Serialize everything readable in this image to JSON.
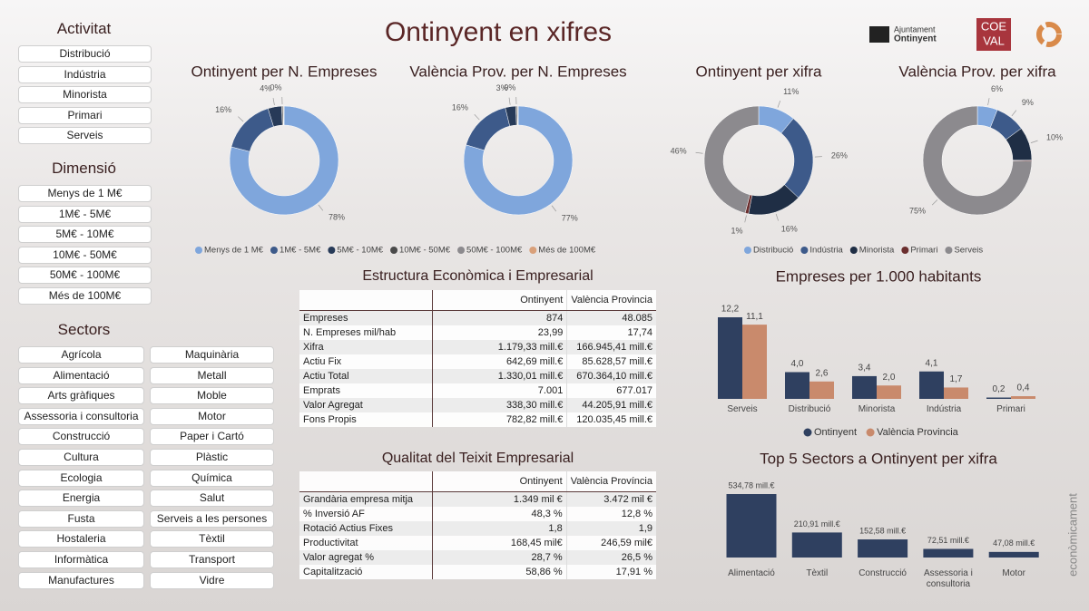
{
  "header": {
    "title": "Ontinyent en xifres",
    "logo_ajuntament": [
      "Ajuntament",
      "Ontinyent"
    ],
    "logo_coeval": [
      "COE",
      "VAL"
    ],
    "side_text": "econòmicament"
  },
  "slicers": [
    {
      "title": "Activitat",
      "items": [
        "Distribució",
        "Indústria",
        "Minorista",
        "Primari",
        "Serveis"
      ]
    },
    {
      "title": "Dimensió",
      "items": [
        "Menys de 1 M€",
        "1M€ - 5M€",
        "5M€ - 10M€",
        "10M€ - 50M€",
        "50M€ - 100M€",
        "Més de 100M€"
      ]
    },
    {
      "title": "Sectors",
      "items": [
        "Agrícola",
        "Alimentació",
        "Arts gràfiques",
        "Assessoria i consultoria",
        "Construcció",
        "Cultura",
        "Ecologia",
        "Energia",
        "Fusta",
        "Hostaleria",
        "Informàtica",
        "Manufactures",
        "Maquinària",
        "Metall",
        "Moble",
        "Motor",
        "Paper i Cartó",
        "Plàstic",
        "Química",
        "Salut",
        "Serveis a les persones",
        "Tèxtil",
        "Transport",
        "Vidre"
      ]
    }
  ],
  "legends": [
    {
      "names": [
        "Menys de 1 M€",
        "1M€ - 5M€",
        "5M€ - 10M€",
        "10M€ - 50M€",
        "50M€ - 100M€",
        "Més de 100M€"
      ],
      "colors": [
        "#7fa6dc",
        "#3d5a8a",
        "#273a58",
        "#4a4a4a",
        "#8c8a8e",
        "#d9a07a"
      ]
    },
    {
      "names": [
        "Distribució",
        "Indústria",
        "Minorista",
        "Primari",
        "Serveis"
      ],
      "colors": [
        "#7fa6dc",
        "#3d5a8a",
        "#1f2e45",
        "#6b2e2e",
        "#8c8a8e"
      ]
    }
  ],
  "chart_data": [
    {
      "type": "donut",
      "title": "Ontinyent per N. Empreses",
      "values": [
        78,
        16,
        4,
        0.4,
        0.2,
        0.1
      ],
      "value_labels": [
        "78%",
        "16%",
        "4%",
        "0%",
        null,
        null
      ],
      "colors": [
        "#7fa6dc",
        "#3d5a8a",
        "#273a58",
        "#4a4a4a",
        "#8c8a8e",
        "#d9a07a"
      ]
    },
    {
      "type": "donut",
      "title": "València Prov. per N. Empreses",
      "values": [
        77,
        16,
        3,
        0.4,
        0.2,
        0.1
      ],
      "value_labels": [
        "77%",
        "16%",
        "3%",
        "0%",
        null,
        null
      ],
      "colors": [
        "#7fa6dc",
        "#3d5a8a",
        "#273a58",
        "#4a4a4a",
        "#8c8a8e",
        "#d9a07a"
      ]
    },
    {
      "type": "donut",
      "title": "Ontinyent per xifra",
      "values": [
        11,
        26,
        16,
        1,
        46
      ],
      "value_labels": [
        "11%",
        "26%",
        "16%",
        "1%",
        "46%"
      ],
      "colors": [
        "#7fa6dc",
        "#3d5a8a",
        "#1f2e45",
        "#6b2e2e",
        "#8c8a8e"
      ]
    },
    {
      "type": "donut",
      "title": "València Prov. per xifra",
      "values": [
        6,
        9,
        10,
        0.3,
        75
      ],
      "value_labels": [
        "6%",
        "9%",
        "10%",
        null,
        "75%"
      ],
      "colors": [
        "#7fa6dc",
        "#3d5a8a",
        "#1f2e45",
        "#6b2e2e",
        "#8c8a8e"
      ]
    },
    {
      "type": "bar",
      "title": "Empreses per 1.000 habitants",
      "categories": [
        "Serveis",
        "Distribució",
        "Minorista",
        "Indústria",
        "Primari"
      ],
      "series": [
        {
          "name": "Ontinyent",
          "color": "#2f4060",
          "values": [
            12.2,
            4.0,
            3.4,
            4.1,
            0.2
          ],
          "value_labels": [
            "12,2",
            "4,0",
            "3,4",
            "4,1",
            "0,2"
          ]
        },
        {
          "name": "València Provincia",
          "color": "#c98a6c",
          "values": [
            11.1,
            2.6,
            2.0,
            1.7,
            0.4
          ],
          "value_labels": [
            "11,1",
            "2,6",
            "2,0",
            "1,7",
            "0,4"
          ]
        }
      ]
    },
    {
      "type": "bar",
      "title": "Top 5 Sectors a Ontinyent per xifra",
      "categories": [
        "Alimentació",
        "Tèxtil",
        "Construcció",
        "Assessoria i consultoria",
        "Motor"
      ],
      "series": [
        {
          "color": "#2f4060",
          "values": [
            534.78,
            210.91,
            152.58,
            72.51,
            47.08
          ],
          "value_labels": [
            "534,78 mill.€",
            "210,91 mill.€",
            "152,58 mill.€",
            "72,51 mill.€",
            "47,08 mill.€"
          ]
        }
      ]
    }
  ],
  "tables": [
    {
      "title": "Estructura Econòmica i Empresarial",
      "columns": [
        "Ontinyent",
        "València Provincia"
      ],
      "rows": [
        [
          "Empreses",
          "874",
          "48.085"
        ],
        [
          "N. Empreses mil/hab",
          "23,99",
          "17,74"
        ],
        [
          "Xifra",
          "1.179,33 mill.€",
          "166.945,41 mill.€"
        ],
        [
          "Actiu Fix",
          "642,69 mill.€",
          "85.628,57 mill.€"
        ],
        [
          "Actiu Total",
          "1.330,01 mill.€",
          "670.364,10 mill.€"
        ],
        [
          "Emprats",
          "7.001",
          "677.017"
        ],
        [
          "Valor Agregat",
          "338,30 mill.€",
          "44.205,91 mill.€"
        ],
        [
          "Fons Propis",
          "782,82 mill.€",
          "120.035,45 mill.€"
        ]
      ]
    },
    {
      "title": "Qualitat del Teixit Empresarial",
      "columns": [
        "Ontinyent",
        "València Província"
      ],
      "rows": [
        [
          "Grandària empresa mitja",
          "1.349 mil €",
          "3.472 mil €"
        ],
        [
          "% Inversió AF",
          "48,3 %",
          "12,8 %"
        ],
        [
          "Rotació Actius Fixes",
          "1,8",
          "1,9"
        ],
        [
          "Productivitat",
          "168,45 mil€",
          "246,59 mil€"
        ],
        [
          "Valor agregat %",
          "28,7 %",
          "26,5 %"
        ],
        [
          "Capitalització",
          "58,86 %",
          "17,91 %"
        ]
      ]
    }
  ]
}
